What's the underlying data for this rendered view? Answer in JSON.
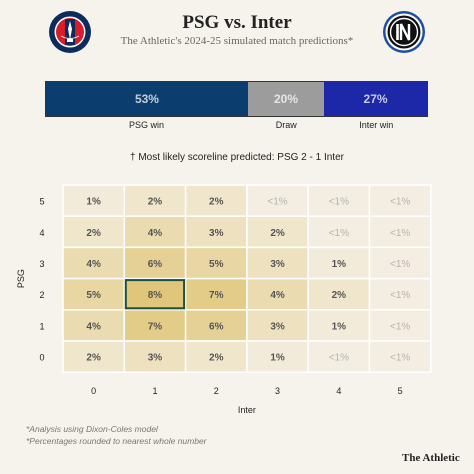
{
  "header": {
    "title": "PSG vs. Inter",
    "subtitle": "The Athletic's 2024-25 simulated match predictions*",
    "home_crest_icon": "psg-crest-icon",
    "away_crest_icon": "inter-crest-icon"
  },
  "outcome_probabilities": [
    {
      "label": "PSG win",
      "value": 53,
      "text": "53%",
      "color": "#0b3e6e"
    },
    {
      "label": "Draw",
      "value": 20,
      "text": "20%",
      "color": "#9c9c9c"
    },
    {
      "label": "Inter win",
      "value": 27,
      "text": "27%",
      "color": "#1d28a8"
    }
  ],
  "scoreline_note": "† Most likely scoreline predicted: PSG 2 - 1 Inter",
  "chart_data": {
    "type": "heatmap",
    "xlabel": "Inter",
    "ylabel": "PSG",
    "x_categories": [
      "0",
      "1",
      "2",
      "3",
      "4",
      "5"
    ],
    "y_categories": [
      "0",
      "1",
      "2",
      "3",
      "4",
      "5"
    ],
    "highlight": {
      "psg": 2,
      "inter": 1
    },
    "rows": [
      {
        "psg": 5,
        "cells": [
          "1%",
          "2%",
          "2%",
          "<1%",
          "<1%",
          "<1%"
        ],
        "values": [
          1,
          2,
          2,
          0.5,
          0.5,
          0.5
        ]
      },
      {
        "psg": 4,
        "cells": [
          "2%",
          "4%",
          "3%",
          "2%",
          "<1%",
          "<1%"
        ],
        "values": [
          2,
          4,
          3,
          2,
          0.5,
          0.5
        ]
      },
      {
        "psg": 3,
        "cells": [
          "4%",
          "6%",
          "5%",
          "3%",
          "1%",
          "<1%"
        ],
        "values": [
          4,
          6,
          5,
          3,
          1,
          0.5
        ]
      },
      {
        "psg": 2,
        "cells": [
          "5%",
          "8%",
          "7%",
          "4%",
          "2%",
          "<1%"
        ],
        "values": [
          5,
          8,
          7,
          4,
          2,
          0.5
        ]
      },
      {
        "psg": 1,
        "cells": [
          "4%",
          "7%",
          "6%",
          "3%",
          "1%",
          "<1%"
        ],
        "values": [
          4,
          7,
          6,
          3,
          1,
          0.5
        ]
      },
      {
        "psg": 0,
        "cells": [
          "2%",
          "3%",
          "2%",
          "1%",
          "<1%",
          "<1%"
        ],
        "values": [
          2,
          3,
          2,
          1,
          0.5,
          0.5
        ]
      }
    ]
  },
  "footnotes": [
    "*Analysis using Dixon-Coles model",
    "*Percentages rounded to nearest whole number"
  ],
  "brand": "The Athletic"
}
